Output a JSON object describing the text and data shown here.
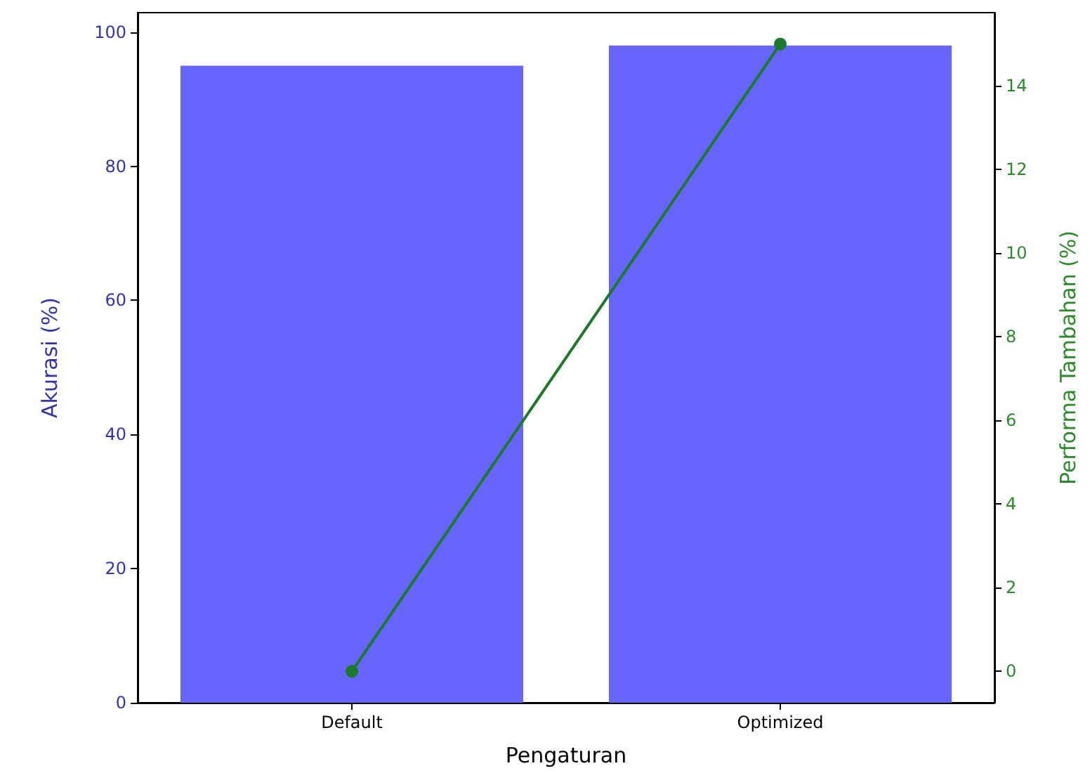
{
  "chart_data": {
    "type": "bar",
    "xlabel": "Pengaturan",
    "ylabel": "Akurasi (%)",
    "y2label": "Performa Tambahan (%)",
    "categories": [
      "Default",
      "Optimized"
    ],
    "series": [
      {
        "color": "#6666ff",
        "values": [
          95,
          98
        ]
      },
      {
        "type": "line",
        "axis": "y2",
        "color": "#1a7a2a",
        "values": [
          0,
          15
        ]
      }
    ],
    "ylim": [
      0,
      102.9
    ],
    "yticks": [
      0,
      20,
      40,
      60,
      80,
      100
    ],
    "y2lim": [
      -0.75,
      15.75
    ],
    "y2ticks": [
      0,
      2,
      4,
      6,
      8,
      10,
      12,
      14
    ],
    "marker": "circle",
    "line_style": "solid",
    "grid": false
  }
}
